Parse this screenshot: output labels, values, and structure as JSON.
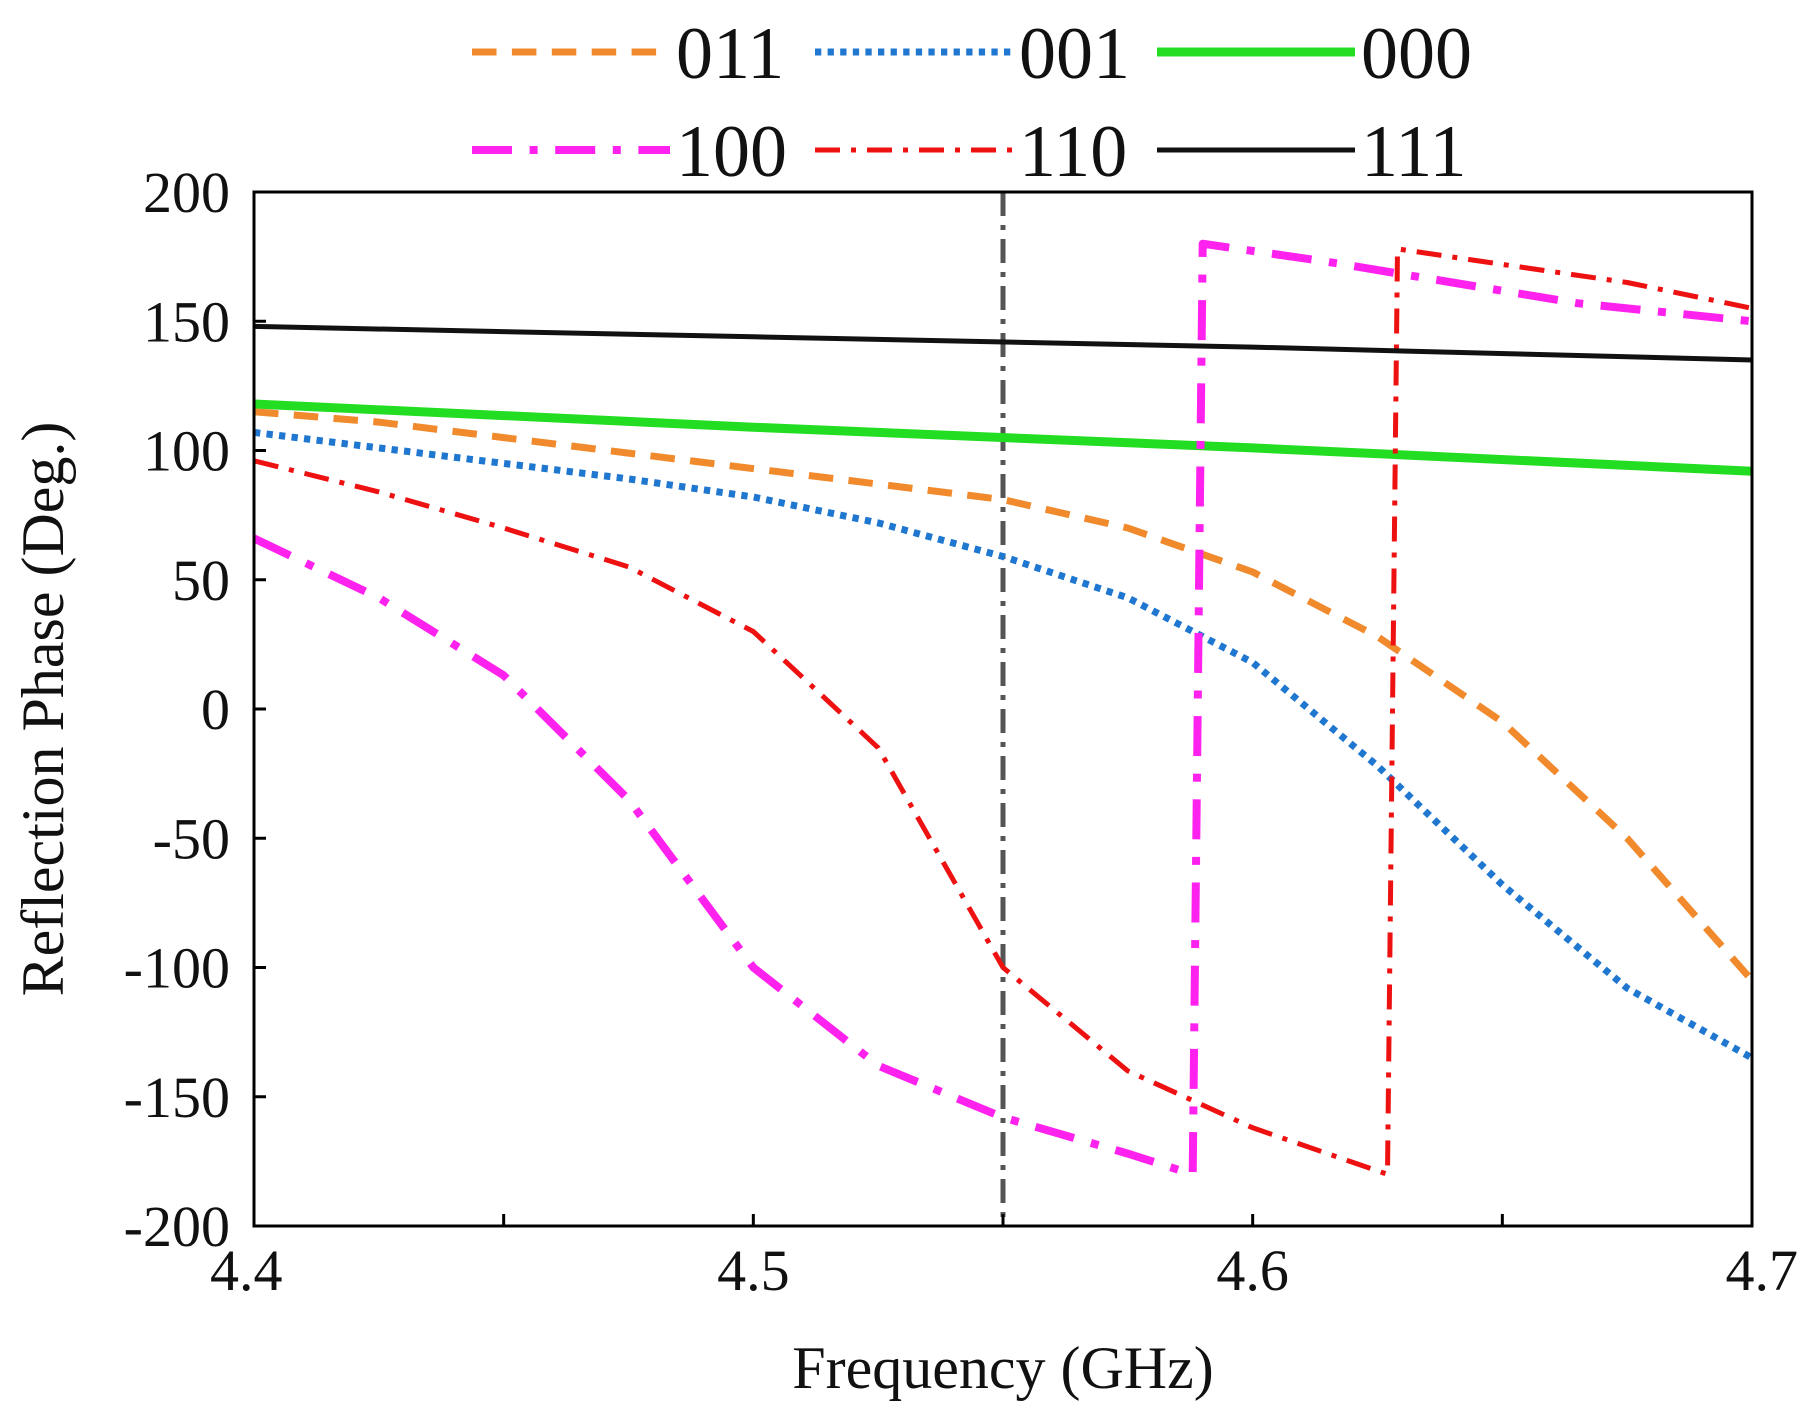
{
  "chart_data": {
    "type": "line",
    "title": "",
    "xlabel": "Frequency (GHz)",
    "ylabel": "Reflection Phase (Deg.)",
    "xlim": [
      4.4,
      4.7
    ],
    "ylim": [
      -200,
      200
    ],
    "xticks": [
      4.4,
      4.45,
      4.5,
      4.55,
      4.6,
      4.65,
      4.7
    ],
    "xtick_labels": [
      "4.4",
      "",
      "4.5",
      "",
      "4.6",
      "",
      "4.7"
    ],
    "yticks": [
      200,
      150,
      100,
      50,
      0,
      -50,
      -100,
      -150,
      -200
    ],
    "ytick_labels": [
      "200",
      "150",
      "100",
      "50",
      "0",
      "-50",
      "-100",
      "-150",
      "-200"
    ],
    "grid": false,
    "legend_position": "top",
    "reference_line": {
      "x": 4.55,
      "color": "#555555",
      "style": "dash-dot"
    },
    "series": [
      {
        "name": "011",
        "color": "#f08a2c",
        "style": "dashed",
        "width": 7,
        "x": [
          4.4,
          4.425,
          4.45,
          4.475,
          4.5,
          4.525,
          4.55,
          4.575,
          4.6,
          4.625,
          4.65,
          4.675,
          4.7
        ],
        "y": [
          115,
          111,
          105,
          99,
          93,
          87,
          81,
          70,
          53,
          28,
          -5,
          -50,
          -105
        ]
      },
      {
        "name": "001",
        "color": "#1f77d0",
        "style": "dotted",
        "width": 7,
        "x": [
          4.4,
          4.425,
          4.45,
          4.475,
          4.5,
          4.525,
          4.55,
          4.575,
          4.6,
          4.625,
          4.65,
          4.675,
          4.7
        ],
        "y": [
          107,
          101,
          95,
          89,
          82,
          72,
          59,
          43,
          18,
          -22,
          -68,
          -108,
          -135
        ]
      },
      {
        "name": "000",
        "color": "#22dd22",
        "style": "solid",
        "width": 9,
        "x": [
          4.4,
          4.5,
          4.6,
          4.7
        ],
        "y": [
          118,
          109,
          101,
          92
        ]
      },
      {
        "name": "100",
        "color": "#ff22ee",
        "style": "dash-dot",
        "width": 8,
        "x": [
          4.4,
          4.425,
          4.45,
          4.475,
          4.5,
          4.525,
          4.55,
          4.575,
          4.588,
          4.59,
          4.615,
          4.64,
          4.665,
          4.7
        ],
        "y": [
          66,
          43,
          13,
          -35,
          -100,
          -138,
          -158,
          -172,
          -180,
          180,
          173,
          165,
          157,
          150
        ]
      },
      {
        "name": "110",
        "color": "#ee1111",
        "style": "dash-dot",
        "width": 5,
        "x": [
          4.4,
          4.425,
          4.45,
          4.475,
          4.5,
          4.525,
          4.55,
          4.575,
          4.6,
          4.627,
          4.629,
          4.65,
          4.675,
          4.7
        ],
        "y": [
          96,
          84,
          70,
          55,
          30,
          -15,
          -100,
          -140,
          -162,
          -180,
          178,
          172,
          165,
          155
        ]
      },
      {
        "name": "111",
        "color": "#111111",
        "style": "solid",
        "width": 5,
        "x": [
          4.4,
          4.5,
          4.6,
          4.7
        ],
        "y": [
          148,
          144,
          140,
          135
        ]
      }
    ]
  }
}
